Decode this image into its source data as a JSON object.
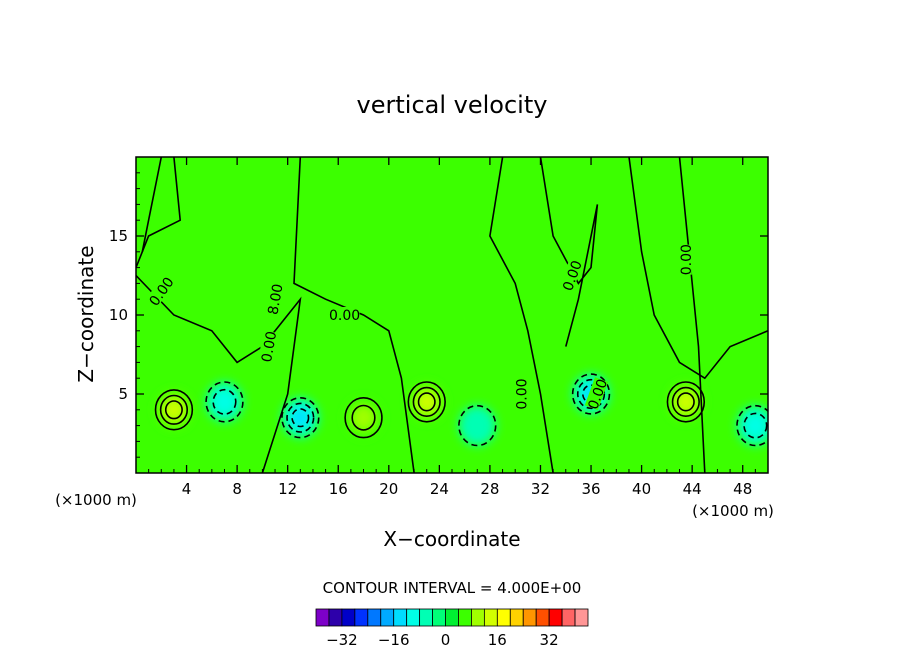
{
  "chart_data": {
    "type": "heatmap",
    "title": "vertical velocity",
    "xlabel": "X−coordinate",
    "ylabel": "Z−coordinate",
    "x_unit_left": "(×1000 m)",
    "x_unit_right": "(×1000 m)",
    "xlim": [
      0,
      50
    ],
    "ylim": [
      0,
      20
    ],
    "x_ticks": [
      4,
      8,
      12,
      16,
      20,
      24,
      28,
      32,
      36,
      40,
      44,
      48
    ],
    "y_ticks": [
      5,
      10,
      15
    ],
    "contour_interval_text": "CONTOUR INTERVAL = 4.000E+00",
    "contour_labels": [
      "0.00",
      "0.00",
      "0.00",
      "0.00",
      "0.00",
      "0.00",
      "0.00",
      "8.00"
    ],
    "background_value": 0,
    "features": [
      {
        "x": 3,
        "z": 4,
        "peak": 14
      },
      {
        "x": 7,
        "z": 4.5,
        "peak": -8
      },
      {
        "x": 13,
        "z": 3.5,
        "peak": -12
      },
      {
        "x": 18,
        "z": 3.5,
        "peak": 8
      },
      {
        "x": 23,
        "z": 4.5,
        "peak": 14
      },
      {
        "x": 27,
        "z": 3,
        "peak": -6
      },
      {
        "x": 36,
        "z": 5,
        "peak": -13
      },
      {
        "x": 43.5,
        "z": 4.5,
        "peak": 14
      },
      {
        "x": 49,
        "z": 3,
        "peak": -8
      }
    ],
    "colorbar": {
      "ticks": [
        -32,
        -16,
        0,
        16,
        32
      ],
      "tick_labels": [
        "−32",
        "−16",
        "0",
        "16",
        "32"
      ],
      "colors": [
        "#7d00c8",
        "#2d00aa",
        "#0000c8",
        "#0032ff",
        "#0078ff",
        "#00aaff",
        "#00dcff",
        "#00ffe6",
        "#00ffb4",
        "#00ff78",
        "#00f032",
        "#3cff00",
        "#a0ff00",
        "#d2ff00",
        "#ffff00",
        "#ffd200",
        "#ff9600",
        "#ff5000",
        "#ff0000",
        "#ff6464",
        "#ff9696"
      ]
    }
  }
}
